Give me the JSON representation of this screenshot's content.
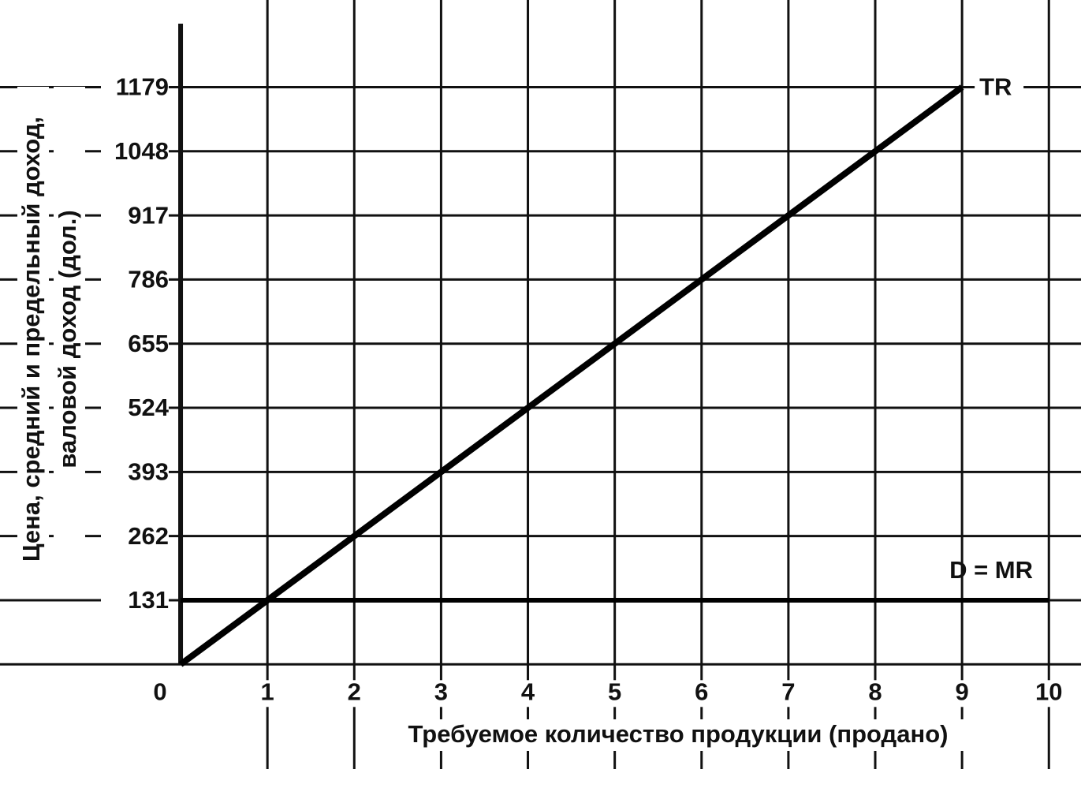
{
  "chart_data": {
    "type": "line",
    "y_label": [
      "Цена, средний и предельный доход,",
      "валовой доход  (дол.)"
    ],
    "x_label": "Требуемое количество продукции (продано)",
    "xlim": [
      -2.08,
      10.37
    ],
    "ylim": [
      -275,
      1357
    ],
    "xticks": [
      0,
      1,
      2,
      3,
      4,
      5,
      6,
      7,
      8,
      9,
      10
    ],
    "yticks": [
      131,
      262,
      393,
      524,
      655,
      786,
      917,
      1048,
      1179
    ],
    "grid": true,
    "series": [
      {
        "name": "TR",
        "color": "#000000",
        "x": [
          0,
          1,
          2,
          3,
          4,
          5,
          6,
          7,
          8,
          9
        ],
        "values": [
          0,
          131,
          262,
          393,
          524,
          655,
          786,
          917,
          1048,
          1179
        ]
      },
      {
        "name": "D = MR",
        "color": "#000000",
        "x": [
          0,
          10
        ],
        "values": [
          131,
          131
        ]
      }
    ]
  }
}
